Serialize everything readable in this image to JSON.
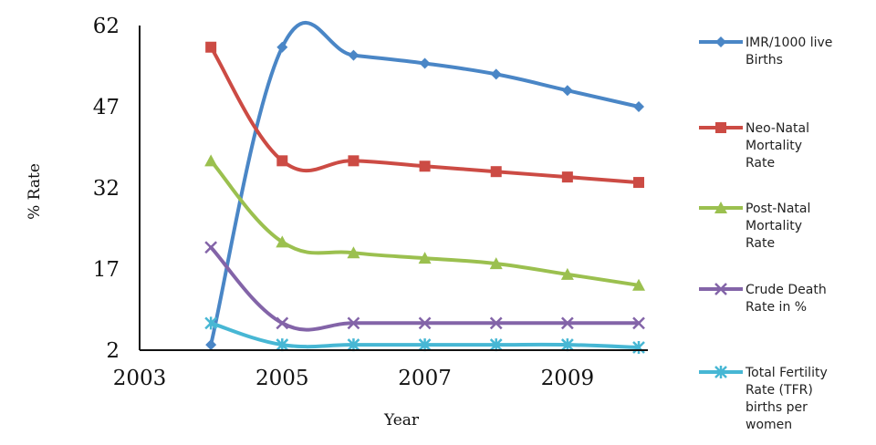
{
  "chart_data": {
    "type": "line",
    "xlabel": "Year",
    "ylabel": "% Rate",
    "xlim": [
      2003,
      2010
    ],
    "ylim": [
      2,
      62
    ],
    "x_ticks": [
      "2003",
      "2005",
      "2007",
      "2009"
    ],
    "y_ticks": [
      "2",
      "17",
      "32",
      "47",
      "62"
    ],
    "x": [
      2004,
      2005,
      2006,
      2007,
      2008,
      2009,
      2010
    ],
    "grid": false,
    "legend_position": "right",
    "series": [
      {
        "name": "IMR/1000 live Births",
        "legend_lines": [
          "IMR/1000 live",
          "Births"
        ],
        "color": "#4a86c6",
        "marker": "diamond",
        "values": [
          3,
          58,
          56.5,
          55,
          53,
          50,
          47
        ]
      },
      {
        "name": "Neo-Natal Mortality Rate",
        "legend_lines": [
          "Neo-Natal",
          "Mortality",
          "Rate"
        ],
        "color": "#cc4b44",
        "marker": "square",
        "values": [
          58,
          37,
          37,
          36,
          35,
          34,
          33
        ]
      },
      {
        "name": "Post-Natal Mortality Rate",
        "legend_lines": [
          "Post-Natal",
          "Mortality",
          "Rate"
        ],
        "color": "#9bc04f",
        "marker": "triangle",
        "values": [
          37,
          22,
          20,
          19,
          18,
          16,
          14
        ]
      },
      {
        "name": "Crude Death Rate in %",
        "legend_lines": [
          "Crude Death",
          "Rate in %"
        ],
        "color": "#8364a8",
        "marker": "x",
        "values": [
          21,
          7,
          7,
          7,
          7,
          7,
          7
        ]
      },
      {
        "name": "Total Fertility Rate (TFR) births per women",
        "legend_lines": [
          "Total Fertility",
          "Rate (TFR)",
          "births per",
          "women"
        ],
        "color": "#47b7d4",
        "marker": "star",
        "values": [
          7,
          3,
          3,
          3,
          3,
          3,
          2.5
        ]
      }
    ]
  }
}
